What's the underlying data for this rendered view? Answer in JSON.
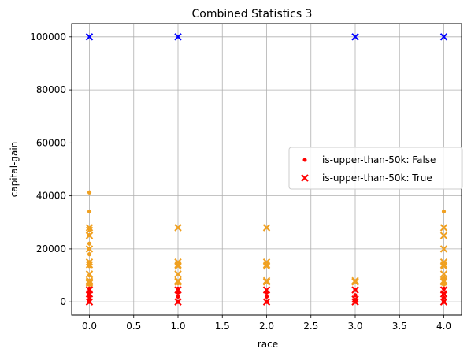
{
  "chart_data": {
    "type": "scatter",
    "title": "Combined Statistics 3",
    "xlabel": "race",
    "ylabel": "capital-gain",
    "xlim": [
      -0.2,
      4.2
    ],
    "ylim": [
      -5000,
      105000
    ],
    "xticks": [
      "0.0",
      "0.5",
      "1.0",
      "1.5",
      "2.0",
      "2.5",
      "3.0",
      "3.5",
      "4.0"
    ],
    "yticks": [
      "0",
      "20000",
      "40000",
      "60000",
      "80000",
      "100000"
    ],
    "grid": true,
    "legend_position": "center-right",
    "legend": [
      {
        "label": "is-upper-than-50k: False",
        "marker": "dot",
        "color": "#ff0000"
      },
      {
        "label": "is-upper-than-50k: True",
        "marker": "x",
        "color": "#ff0000"
      }
    ],
    "colors": {
      "low": "#ff0000",
      "mid": "#f0a020",
      "high": "#0000ff",
      "grid": "#b0b0b0"
    },
    "series": [
      {
        "marker": "dot",
        "points": [
          {
            "x": 0,
            "y": 0,
            "c": "low"
          },
          {
            "x": 0,
            "y": 1000,
            "c": "low"
          },
          {
            "x": 0,
            "y": 2000,
            "c": "low"
          },
          {
            "x": 0,
            "y": 3000,
            "c": "low"
          },
          {
            "x": 0,
            "y": 4000,
            "c": "low"
          },
          {
            "x": 0,
            "y": 5000,
            "c": "low"
          },
          {
            "x": 0,
            "y": 6500,
            "c": "mid"
          },
          {
            "x": 0,
            "y": 8000,
            "c": "mid"
          },
          {
            "x": 0,
            "y": 10000,
            "c": "mid"
          },
          {
            "x": 0,
            "y": 13500,
            "c": "mid"
          },
          {
            "x": 0,
            "y": 15000,
            "c": "mid"
          },
          {
            "x": 0,
            "y": 18000,
            "c": "mid"
          },
          {
            "x": 0,
            "y": 20000,
            "c": "mid"
          },
          {
            "x": 0,
            "y": 22000,
            "c": "mid"
          },
          {
            "x": 0,
            "y": 25200,
            "c": "mid"
          },
          {
            "x": 0,
            "y": 27800,
            "c": "mid"
          },
          {
            "x": 0,
            "y": 34100,
            "c": "mid"
          },
          {
            "x": 0,
            "y": 41300,
            "c": "mid"
          },
          {
            "x": 1,
            "y": 0,
            "c": "low"
          },
          {
            "x": 1,
            "y": 2000,
            "c": "low"
          },
          {
            "x": 1,
            "y": 3500,
            "c": "low"
          },
          {
            "x": 1,
            "y": 5000,
            "c": "low"
          },
          {
            "x": 1,
            "y": 7000,
            "c": "mid"
          },
          {
            "x": 2,
            "y": 0,
            "c": "low"
          },
          {
            "x": 2,
            "y": 2000,
            "c": "low"
          },
          {
            "x": 2,
            "y": 3500,
            "c": "low"
          },
          {
            "x": 3,
            "y": 0,
            "c": "low"
          },
          {
            "x": 3,
            "y": 2500,
            "c": "low"
          },
          {
            "x": 3,
            "y": 4500,
            "c": "low"
          },
          {
            "x": 4,
            "y": 0,
            "c": "low"
          },
          {
            "x": 4,
            "y": 1500,
            "c": "low"
          },
          {
            "x": 4,
            "y": 3000,
            "c": "low"
          },
          {
            "x": 4,
            "y": 5000,
            "c": "low"
          },
          {
            "x": 4,
            "y": 6500,
            "c": "mid"
          },
          {
            "x": 4,
            "y": 9000,
            "c": "mid"
          },
          {
            "x": 4,
            "y": 34100,
            "c": "mid"
          }
        ]
      },
      {
        "marker": "x",
        "points": [
          {
            "x": 0,
            "y": 100000,
            "c": "high"
          },
          {
            "x": 0,
            "y": 28000,
            "c": "mid"
          },
          {
            "x": 0,
            "y": 27000,
            "c": "mid"
          },
          {
            "x": 0,
            "y": 25000,
            "c": "mid"
          },
          {
            "x": 0,
            "y": 20000,
            "c": "mid"
          },
          {
            "x": 0,
            "y": 15000,
            "c": "mid"
          },
          {
            "x": 0,
            "y": 14000,
            "c": "mid"
          },
          {
            "x": 0,
            "y": 10500,
            "c": "mid"
          },
          {
            "x": 0,
            "y": 8000,
            "c": "mid"
          },
          {
            "x": 0,
            "y": 7500,
            "c": "mid"
          },
          {
            "x": 0,
            "y": 7000,
            "c": "mid"
          },
          {
            "x": 0,
            "y": 4500,
            "c": "low"
          },
          {
            "x": 0,
            "y": 3000,
            "c": "low"
          },
          {
            "x": 0,
            "y": 0,
            "c": "low"
          },
          {
            "x": 1,
            "y": 100000,
            "c": "high"
          },
          {
            "x": 1,
            "y": 28000,
            "c": "mid"
          },
          {
            "x": 1,
            "y": 15000,
            "c": "mid"
          },
          {
            "x": 1,
            "y": 14000,
            "c": "mid"
          },
          {
            "x": 1,
            "y": 13500,
            "c": "mid"
          },
          {
            "x": 1,
            "y": 10500,
            "c": "mid"
          },
          {
            "x": 1,
            "y": 8000,
            "c": "mid"
          },
          {
            "x": 1,
            "y": 7500,
            "c": "mid"
          },
          {
            "x": 1,
            "y": 4500,
            "c": "low"
          },
          {
            "x": 1,
            "y": 0,
            "c": "low"
          },
          {
            "x": 2,
            "y": 28000,
            "c": "mid"
          },
          {
            "x": 2,
            "y": 15000,
            "c": "mid"
          },
          {
            "x": 2,
            "y": 14000,
            "c": "mid"
          },
          {
            "x": 2,
            "y": 13500,
            "c": "mid"
          },
          {
            "x": 2,
            "y": 8000,
            "c": "mid"
          },
          {
            "x": 2,
            "y": 7500,
            "c": "mid"
          },
          {
            "x": 2,
            "y": 4500,
            "c": "low"
          },
          {
            "x": 2,
            "y": 0,
            "c": "low"
          },
          {
            "x": 3,
            "y": 100000,
            "c": "high"
          },
          {
            "x": 3,
            "y": 8000,
            "c": "mid"
          },
          {
            "x": 3,
            "y": 7500,
            "c": "mid"
          },
          {
            "x": 3,
            "y": 4500,
            "c": "low"
          },
          {
            "x": 3,
            "y": 1000,
            "c": "low"
          },
          {
            "x": 3,
            "y": 0,
            "c": "low"
          },
          {
            "x": 4,
            "y": 100000,
            "c": "high"
          },
          {
            "x": 4,
            "y": 28000,
            "c": "mid"
          },
          {
            "x": 4,
            "y": 25000,
            "c": "mid"
          },
          {
            "x": 4,
            "y": 20000,
            "c": "mid"
          },
          {
            "x": 4,
            "y": 15000,
            "c": "mid"
          },
          {
            "x": 4,
            "y": 14000,
            "c": "mid"
          },
          {
            "x": 4,
            "y": 13500,
            "c": "mid"
          },
          {
            "x": 4,
            "y": 10500,
            "c": "mid"
          },
          {
            "x": 4,
            "y": 8000,
            "c": "mid"
          },
          {
            "x": 4,
            "y": 7500,
            "c": "mid"
          },
          {
            "x": 4,
            "y": 4500,
            "c": "low"
          },
          {
            "x": 4,
            "y": 3000,
            "c": "low"
          },
          {
            "x": 4,
            "y": 0,
            "c": "low"
          }
        ]
      }
    ]
  }
}
